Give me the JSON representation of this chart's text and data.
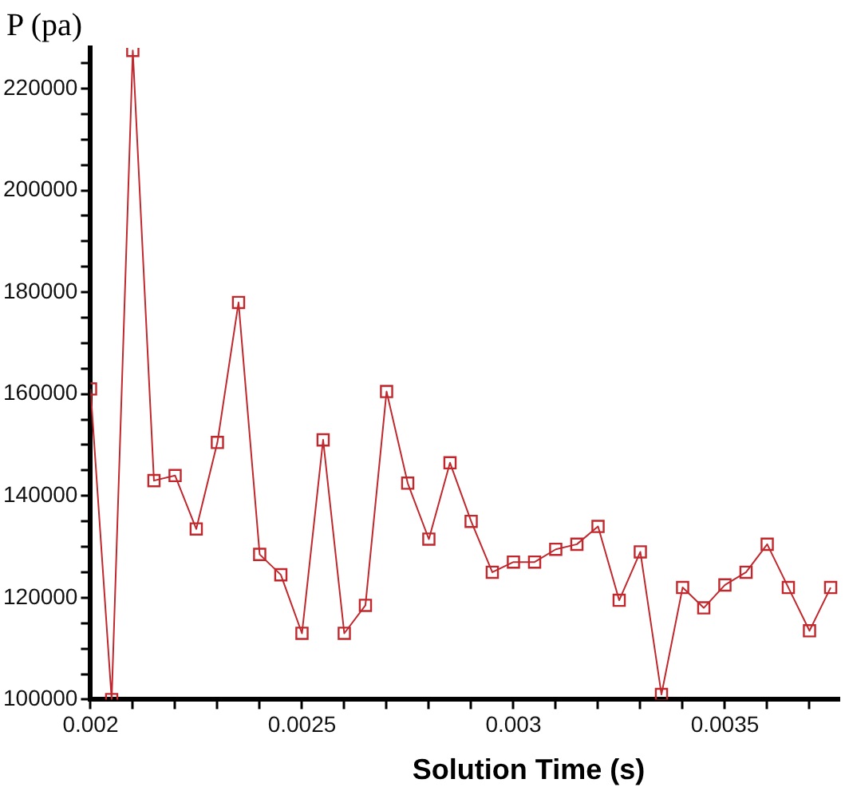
{
  "chart_data": {
    "type": "line",
    "xlabel": "Solution Time (s)",
    "ylabel": "P (pa)",
    "x": [
      0.002,
      0.00205,
      0.0021,
      0.00215,
      0.0022,
      0.00225,
      0.0023,
      0.00235,
      0.0024,
      0.00245,
      0.0025,
      0.00255,
      0.0026,
      0.00265,
      0.0027,
      0.00275,
      0.0028,
      0.00285,
      0.0029,
      0.00295,
      0.003,
      0.00305,
      0.0031,
      0.00315,
      0.0032,
      0.00325,
      0.0033,
      0.00335,
      0.0034,
      0.00345,
      0.0035,
      0.00355,
      0.0036,
      0.00365,
      0.0037,
      0.00375
    ],
    "series": [
      {
        "color": "#c0282d",
        "values": [
          161000,
          100000,
          227500,
          143000,
          144000,
          133500,
          150500,
          178000,
          128500,
          124500,
          113000,
          151000,
          113000,
          118500,
          160500,
          142500,
          131500,
          146500,
          135000,
          125000,
          127000,
          127000,
          129500,
          130500,
          134000,
          119500,
          129000,
          101000,
          122000,
          118000,
          122500,
          125000,
          130500,
          122000,
          113500,
          122000
        ]
      }
    ],
    "xlim": [
      0.002,
      0.00377
    ],
    "xticks": [
      0.002,
      {
        "value": 0.0021,
        "label": null
      },
      {
        "value": 0.0022,
        "label": null
      },
      {
        "value": 0.0023,
        "label": null
      },
      {
        "value": 0.0024,
        "label": null
      },
      0.0025,
      {
        "value": 0.0026,
        "label": null
      },
      {
        "value": 0.0027,
        "label": null
      },
      {
        "value": 0.0028,
        "label": null
      },
      {
        "value": 0.0029,
        "label": null
      },
      0.003,
      {
        "value": 0.0031,
        "label": null
      },
      {
        "value": 0.0032,
        "label": null
      },
      {
        "value": 0.0033,
        "label": null
      },
      {
        "value": 0.0034,
        "label": null
      },
      0.0035,
      {
        "value": 0.0036,
        "label": null
      },
      {
        "value": 0.0037,
        "label": null
      }
    ],
    "ylim": [
      100000,
      228000
    ],
    "yticks": [
      100000,
      {
        "value": 105000,
        "label": null
      },
      {
        "value": 110000,
        "label": null
      },
      {
        "value": 115000,
        "label": null
      },
      120000,
      {
        "value": 125000,
        "label": null
      },
      {
        "value": 130000,
        "label": null
      },
      {
        "value": 135000,
        "label": null
      },
      140000,
      {
        "value": 145000,
        "label": null
      },
      {
        "value": 150000,
        "label": null
      },
      {
        "value": 155000,
        "label": null
      },
      160000,
      {
        "value": 165000,
        "label": null
      },
      {
        "value": 170000,
        "label": null
      },
      {
        "value": 175000,
        "label": null
      },
      180000,
      {
        "value": 185000,
        "label": null
      },
      {
        "value": 190000,
        "label": null
      },
      {
        "value": 195000,
        "label": null
      },
      200000,
      {
        "value": 205000,
        "label": null
      },
      {
        "value": 210000,
        "label": null
      },
      {
        "value": 215000,
        "label": null
      },
      220000,
      {
        "value": 225000,
        "label": null
      }
    ],
    "grid": false,
    "legend": false,
    "marker": "square",
    "line_style": "solid"
  }
}
